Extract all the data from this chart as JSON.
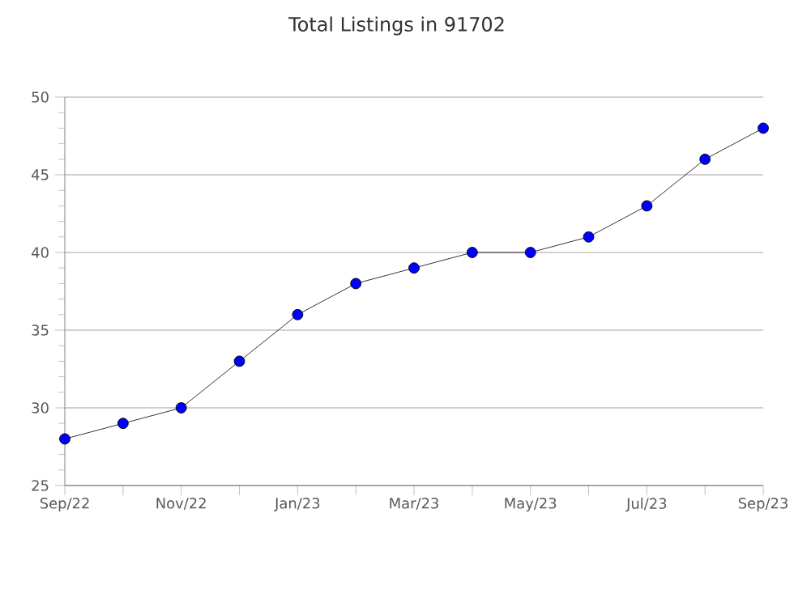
{
  "chart_data": {
    "type": "line",
    "title": "Total Listings in 91702",
    "categories": [
      "Sep/22",
      null,
      "Nov/22",
      null,
      "Jan/23",
      null,
      "Mar/23",
      null,
      "May/23",
      null,
      "Jul/23",
      null,
      "Sep/23"
    ],
    "series": [
      {
        "color": "#0000ff",
        "values": [
          28,
          29,
          30,
          33,
          36,
          38,
          39,
          40,
          40,
          41,
          43,
          46,
          48
        ]
      }
    ],
    "ylim": [
      25,
      50
    ],
    "yticks": [
      25,
      30,
      35,
      40,
      45,
      50
    ],
    "grid": "y",
    "marker": "circle",
    "line_style": "solid"
  }
}
